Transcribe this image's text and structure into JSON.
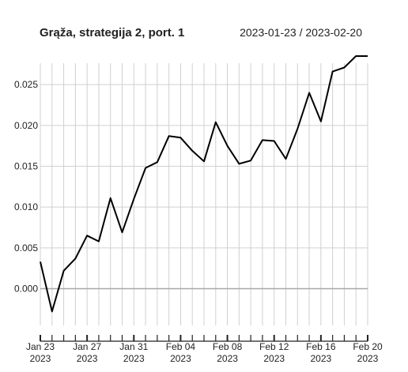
{
  "header": {
    "title": "Grąža, strategija 2, port. 1",
    "date_range": "2023-01-23 / 2023-02-20"
  },
  "chart_data": {
    "type": "line",
    "title": "Grąža, strategija 2, port. 1",
    "xlabel": "",
    "ylabel": "",
    "x_type": "date",
    "x": [
      "2023-01-23",
      "2023-01-24",
      "2023-01-25",
      "2023-01-26",
      "2023-01-27",
      "2023-01-28",
      "2023-01-29",
      "2023-01-30",
      "2023-01-31",
      "2023-02-01",
      "2023-02-02",
      "2023-02-03",
      "2023-02-04",
      "2023-02-05",
      "2023-02-06",
      "2023-02-07",
      "2023-02-08",
      "2023-02-09",
      "2023-02-10",
      "2023-02-11",
      "2023-02-12",
      "2023-02-13",
      "2023-02-14",
      "2023-02-15",
      "2023-02-16",
      "2023-02-17",
      "2023-02-18",
      "2023-02-19",
      "2023-02-20"
    ],
    "series": [
      {
        "values": [
          0.0033,
          -0.0028,
          0.0022,
          0.0037,
          0.0065,
          0.0058,
          0.0111,
          0.0069,
          0.011,
          0.0148,
          0.0155,
          0.0187,
          0.0185,
          0.0169,
          0.0156,
          0.0204,
          0.0175,
          0.0153,
          0.0157,
          0.0182,
          0.0181,
          0.0159,
          0.0196,
          0.024,
          0.0205,
          0.0266,
          0.0271,
          0.0295,
          0.0295
        ],
        "color": "#000000"
      }
    ],
    "xlim": [
      "2023-01-23",
      "2023-02-20"
    ],
    "ylim": [
      -0.0045,
      0.0285
    ],
    "yticks": [
      0.0,
      0.005,
      0.01,
      0.015,
      0.02,
      0.025
    ],
    "ytick_labels": [
      "0.000",
      "0.005",
      "0.010",
      "0.015",
      "0.020",
      "0.025"
    ],
    "xticks": [
      {
        "date": "2023-01-23",
        "line1": "Jan 23",
        "line2": "2023"
      },
      {
        "date": "2023-01-27",
        "line1": "Jan 27",
        "line2": "2023"
      },
      {
        "date": "2023-01-31",
        "line1": "Jan 31",
        "line2": "2023"
      },
      {
        "date": "2023-02-04",
        "line1": "Feb 04",
        "line2": "2023"
      },
      {
        "date": "2023-02-08",
        "line1": "Feb 08",
        "line2": "2023"
      },
      {
        "date": "2023-02-12",
        "line1": "Feb 12",
        "line2": "2023"
      },
      {
        "date": "2023-02-16",
        "line1": "Feb 16",
        "line2": "2023"
      },
      {
        "date": "2023-02-20",
        "line1": "Feb 20",
        "line2": "2023"
      }
    ],
    "grid": true,
    "zero_line": true,
    "colors": {
      "line": "#000000",
      "grid": "#d0d0d0",
      "zero": "#a8a8a8",
      "axis": "#222222"
    }
  }
}
